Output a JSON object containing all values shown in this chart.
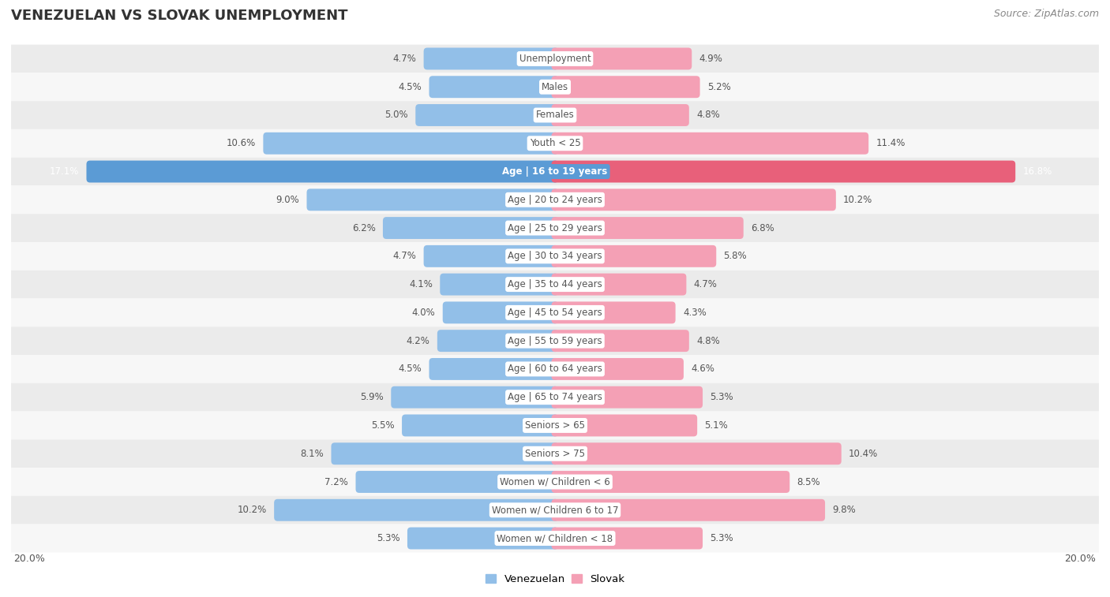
{
  "title": "VENEZUELAN VS SLOVAK UNEMPLOYMENT",
  "source": "Source: ZipAtlas.com",
  "categories": [
    "Unemployment",
    "Males",
    "Females",
    "Youth < 25",
    "Age | 16 to 19 years",
    "Age | 20 to 24 years",
    "Age | 25 to 29 years",
    "Age | 30 to 34 years",
    "Age | 35 to 44 years",
    "Age | 45 to 54 years",
    "Age | 55 to 59 years",
    "Age | 60 to 64 years",
    "Age | 65 to 74 years",
    "Seniors > 65",
    "Seniors > 75",
    "Women w/ Children < 6",
    "Women w/ Children 6 to 17",
    "Women w/ Children < 18"
  ],
  "venezuelan": [
    4.7,
    4.5,
    5.0,
    10.6,
    17.1,
    9.0,
    6.2,
    4.7,
    4.1,
    4.0,
    4.2,
    4.5,
    5.9,
    5.5,
    8.1,
    7.2,
    10.2,
    5.3
  ],
  "slovak": [
    4.9,
    5.2,
    4.8,
    11.4,
    16.8,
    10.2,
    6.8,
    5.8,
    4.7,
    4.3,
    4.8,
    4.6,
    5.3,
    5.1,
    10.4,
    8.5,
    9.8,
    5.3
  ],
  "venezuelan_color": "#92bfe8",
  "slovak_color": "#f4a0b5",
  "highlight_venezuelan_color": "#5b9bd5",
  "highlight_slovak_color": "#e8607a",
  "highlight_rows": [
    4
  ],
  "bar_height": 0.52,
  "xlim": 20.0,
  "bg_color": "#ffffff",
  "row_odd_color": "#ebebeb",
  "row_even_color": "#f7f7f7",
  "legend_venezuelan": "Venezuelan",
  "legend_slovak": "Slovak",
  "axis_label_left": "20.0%",
  "axis_label_right": "20.0%",
  "val_label_color": "#555555",
  "highlight_val_color": "#ffffff",
  "cat_label_color": "#555555",
  "cat_pill_color": "#ffffff",
  "highlight_cat_pill_color": "#5b9bd5",
  "highlight_cat_label_color": "#ffffff"
}
